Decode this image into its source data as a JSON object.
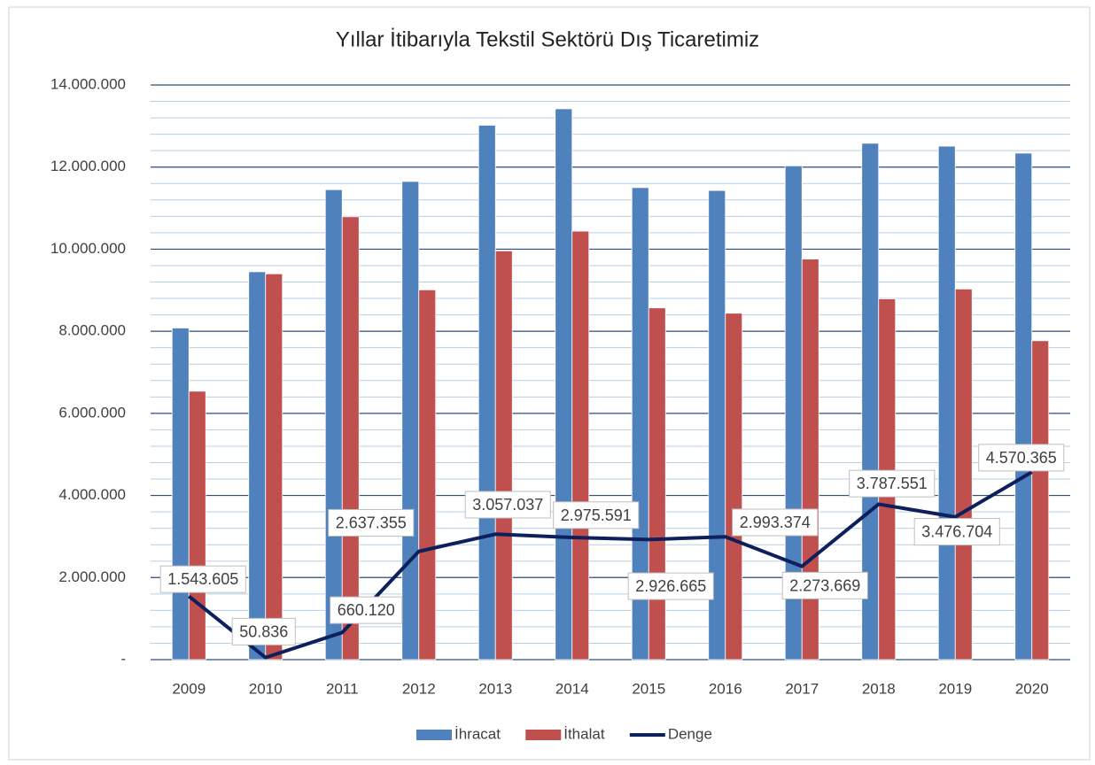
{
  "chart_data": {
    "type": "bar-line",
    "title": "Yıllar İtibarıyla Tekstil Sektörü Dış Ticaretimiz",
    "categories": [
      "2009",
      "2010",
      "2011",
      "2012",
      "2013",
      "2014",
      "2015",
      "2016",
      "2017",
      "2018",
      "2019",
      "2020"
    ],
    "series": [
      {
        "name": "İhracat",
        "type": "bar",
        "color": "#4f81bd",
        "values": [
          8080000,
          9450000,
          11450000,
          11650000,
          13020000,
          13420000,
          11500000,
          11430000,
          12030000,
          12580000,
          12510000,
          12340000
        ]
      },
      {
        "name": "İthalat",
        "type": "bar",
        "color": "#c0504d",
        "values": [
          6540000,
          9400000,
          10790000,
          9010000,
          9960000,
          10440000,
          8570000,
          8440000,
          9760000,
          8790000,
          9030000,
          7770000
        ]
      },
      {
        "name": "Denge",
        "type": "line",
        "color": "#0d1f5c",
        "values": [
          1543605,
          50836,
          660120,
          2637355,
          3057037,
          2975591,
          2926665,
          2993374,
          2273669,
          3787551,
          3476704,
          4570365
        ],
        "value_labels": [
          "1.543.605",
          "50.836",
          "660.120",
          "2.637.355",
          "3.057.037",
          "2.975.591",
          "2.926.665",
          "2.993.374",
          "2.273.669",
          "3.787.551",
          "3.476.704",
          "4.570.365"
        ]
      }
    ],
    "ylim": [
      0,
      14000000
    ],
    "yticks": [
      {
        "value": 0,
        "label": "-"
      },
      {
        "value": 2000000,
        "label": "2.000.000"
      },
      {
        "value": 4000000,
        "label": "4.000.000"
      },
      {
        "value": 6000000,
        "label": "6.000.000"
      },
      {
        "value": 8000000,
        "label": "8.000.000"
      },
      {
        "value": 10000000,
        "label": "10.000.000"
      },
      {
        "value": 12000000,
        "label": "12.000.000"
      },
      {
        "value": 14000000,
        "label": "14.000.000"
      }
    ],
    "minor_grid_step": 400000,
    "grid": true,
    "legend": "bottom"
  }
}
